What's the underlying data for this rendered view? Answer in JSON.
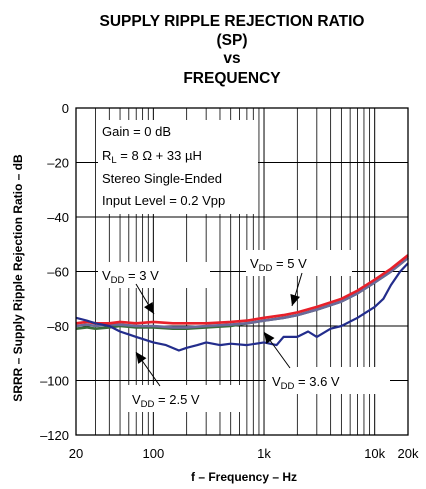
{
  "chart_data": {
    "type": "line",
    "title_lines": [
      "SUPPLY RIPPLE REJECTION RATIO",
      "(SP)",
      "vs",
      "FREQUENCY"
    ],
    "xlabel": "f – Frequency – Hz",
    "ylabel": "SRRR – Supply Ripple Rejection Ratio – dB",
    "xscale": "log",
    "xlim": [
      20,
      20000
    ],
    "ylim": [
      -120,
      0
    ],
    "x_ticks": [
      {
        "value": 20,
        "label": "20"
      },
      {
        "value": 100,
        "label": "100"
      },
      {
        "value": 1000,
        "label": "1k"
      },
      {
        "value": 10000,
        "label": "10k"
      },
      {
        "value": 20000,
        "label": "20k"
      }
    ],
    "y_ticks": [
      {
        "value": 0,
        "label": "0"
      },
      {
        "value": -20,
        "label": "–20"
      },
      {
        "value": -40,
        "label": "–40"
      },
      {
        "value": -60,
        "label": "–60"
      },
      {
        "value": -80,
        "label": "–80"
      },
      {
        "value": -100,
        "label": "–100"
      },
      {
        "value": -120,
        "label": "–120"
      }
    ],
    "grid": true,
    "conditions": [
      {
        "key": "gain",
        "text": "Gain = 0 dB"
      },
      {
        "key": "load",
        "text": "R",
        "sub": "L",
        "rest": " = 8 Ω + 33 µH"
      },
      {
        "key": "mode",
        "text": "Stereo Single-Ended"
      },
      {
        "key": "level",
        "text": "Input Level = 0.2 Vpp"
      }
    ],
    "series": [
      {
        "label": "V",
        "label_sub": "DD",
        "label_rest": " = 5 V",
        "color": "#e8202a",
        "x": [
          20,
          25,
          30,
          40,
          50,
          70,
          100,
          150,
          200,
          300,
          500,
          700,
          1000,
          1500,
          2000,
          3000,
          5000,
          7000,
          10000,
          14000,
          20000
        ],
        "y": [
          -79,
          -78.5,
          -79,
          -79,
          -78.5,
          -79,
          -78.5,
          -79,
          -79,
          -79,
          -78.5,
          -78,
          -77,
          -76,
          -75,
          -73,
          -70,
          -67,
          -63,
          -59,
          -54
        ]
      },
      {
        "label": "V",
        "label_sub": "DD",
        "label_rest": " = 3 V",
        "color": "#3a6b3a",
        "x": [
          20,
          25,
          30,
          40,
          50,
          70,
          100,
          150,
          200,
          300,
          500,
          700,
          1000,
          1500,
          2000,
          3000,
          5000,
          7000,
          10000,
          14000,
          20000
        ],
        "y": [
          -81,
          -80.5,
          -81,
          -80.5,
          -80,
          -80.5,
          -80.5,
          -81,
          -81,
          -80.5,
          -80,
          -79,
          -78,
          -77,
          -76,
          -74,
          -71,
          -68,
          -64,
          -60,
          -55
        ]
      },
      {
        "label": "V",
        "label_sub": "DD",
        "label_rest": " = 3.6 V",
        "color": "#6a6a9a",
        "x": [
          20,
          25,
          30,
          40,
          50,
          70,
          100,
          150,
          200,
          300,
          500,
          700,
          1000,
          1500,
          2000,
          3000,
          5000,
          7000,
          10000,
          14000,
          20000
        ],
        "y": [
          -80,
          -79.5,
          -80,
          -79.5,
          -79.5,
          -80,
          -80,
          -80.5,
          -80.5,
          -80,
          -79.5,
          -79,
          -78,
          -77,
          -76,
          -74,
          -71,
          -68,
          -64,
          -60,
          -55
        ]
      },
      {
        "label": "V",
        "label_sub": "DD",
        "label_rest": " = 2.5 V",
        "color": "#232d8c",
        "x": [
          20,
          25,
          30,
          40,
          50,
          70,
          100,
          130,
          170,
          200,
          250,
          300,
          400,
          500,
          700,
          1000,
          1300,
          1500,
          2000,
          2500,
          3000,
          4000,
          5000,
          7000,
          10000,
          12000,
          14000,
          17000,
          20000
        ],
        "y": [
          -77,
          -78,
          -79,
          -80,
          -82,
          -84,
          -86,
          -87,
          -89,
          -88,
          -87,
          -86,
          -87,
          -86.5,
          -87,
          -86,
          -87,
          -84,
          -84,
          -82,
          -84,
          -81,
          -80,
          -77,
          -73,
          -70,
          -65,
          -60,
          -57
        ]
      }
    ]
  }
}
